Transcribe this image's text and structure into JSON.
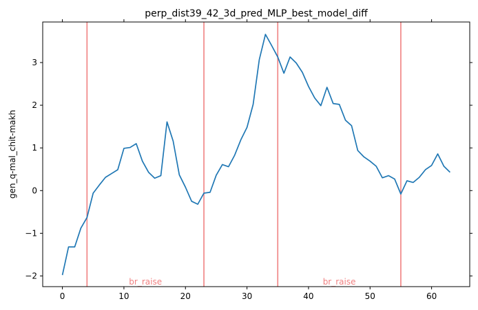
{
  "chart_data": {
    "type": "line",
    "title": "perp_dist39_42_3d_pred_MLP_best_model_diff",
    "xlabel": "",
    "ylabel": "gen_q-mal_chit-makh",
    "xlim": [
      -3.2,
      66.2
    ],
    "ylim": [
      -2.25,
      3.95
    ],
    "xticks": [
      0,
      10,
      20,
      30,
      40,
      50,
      60
    ],
    "yticks": [
      -2,
      -1,
      0,
      1,
      2,
      3
    ],
    "xtick_labels": [
      "0",
      "10",
      "20",
      "30",
      "40",
      "50",
      "60"
    ],
    "ytick_labels": [
      "−2",
      "−1",
      "0",
      "1",
      "2",
      "3"
    ],
    "grid": false,
    "series": [
      {
        "color": "#1f77b4",
        "x": [
          0,
          1,
          2,
          3,
          4,
          5,
          6,
          7,
          8,
          9,
          10,
          11,
          12,
          13,
          14,
          15,
          16,
          17,
          18,
          19,
          20,
          21,
          22,
          23,
          24,
          25,
          26,
          27,
          28,
          29,
          30,
          31,
          32,
          33,
          34,
          35,
          36,
          37,
          38,
          39,
          40,
          41,
          42,
          43,
          44,
          45,
          46,
          47,
          48,
          49,
          50,
          51,
          52,
          53,
          54,
          55,
          56,
          57,
          58,
          59,
          60,
          61,
          62,
          63
        ],
        "y": [
          -1.98,
          -1.32,
          -1.32,
          -0.88,
          -0.63,
          -0.06,
          0.13,
          0.31,
          0.4,
          0.49,
          0.99,
          1.01,
          1.1,
          0.69,
          0.43,
          0.29,
          0.35,
          1.61,
          1.16,
          0.37,
          0.08,
          -0.25,
          -0.32,
          -0.06,
          -0.04,
          0.36,
          0.61,
          0.56,
          0.83,
          1.19,
          1.48,
          2.02,
          3.07,
          3.66,
          3.4,
          3.13,
          2.75,
          3.13,
          2.99,
          2.77,
          2.44,
          2.17,
          1.99,
          2.42,
          2.04,
          2.02,
          1.65,
          1.52,
          0.94,
          0.79,
          0.69,
          0.57,
          0.3,
          0.35,
          0.27,
          -0.08,
          0.23,
          0.19,
          0.31,
          0.49,
          0.59,
          0.86,
          0.57,
          0.43
        ]
      }
    ],
    "vlines": {
      "color": "#f08080",
      "x": [
        4,
        23,
        35,
        55
      ]
    },
    "annotations": [
      {
        "text": "br_raise",
        "x": 13.5,
        "y": -2.14,
        "color": "#f08080"
      },
      {
        "text": "br_raise",
        "x": 45,
        "y": -2.14,
        "color": "#f08080"
      }
    ]
  }
}
